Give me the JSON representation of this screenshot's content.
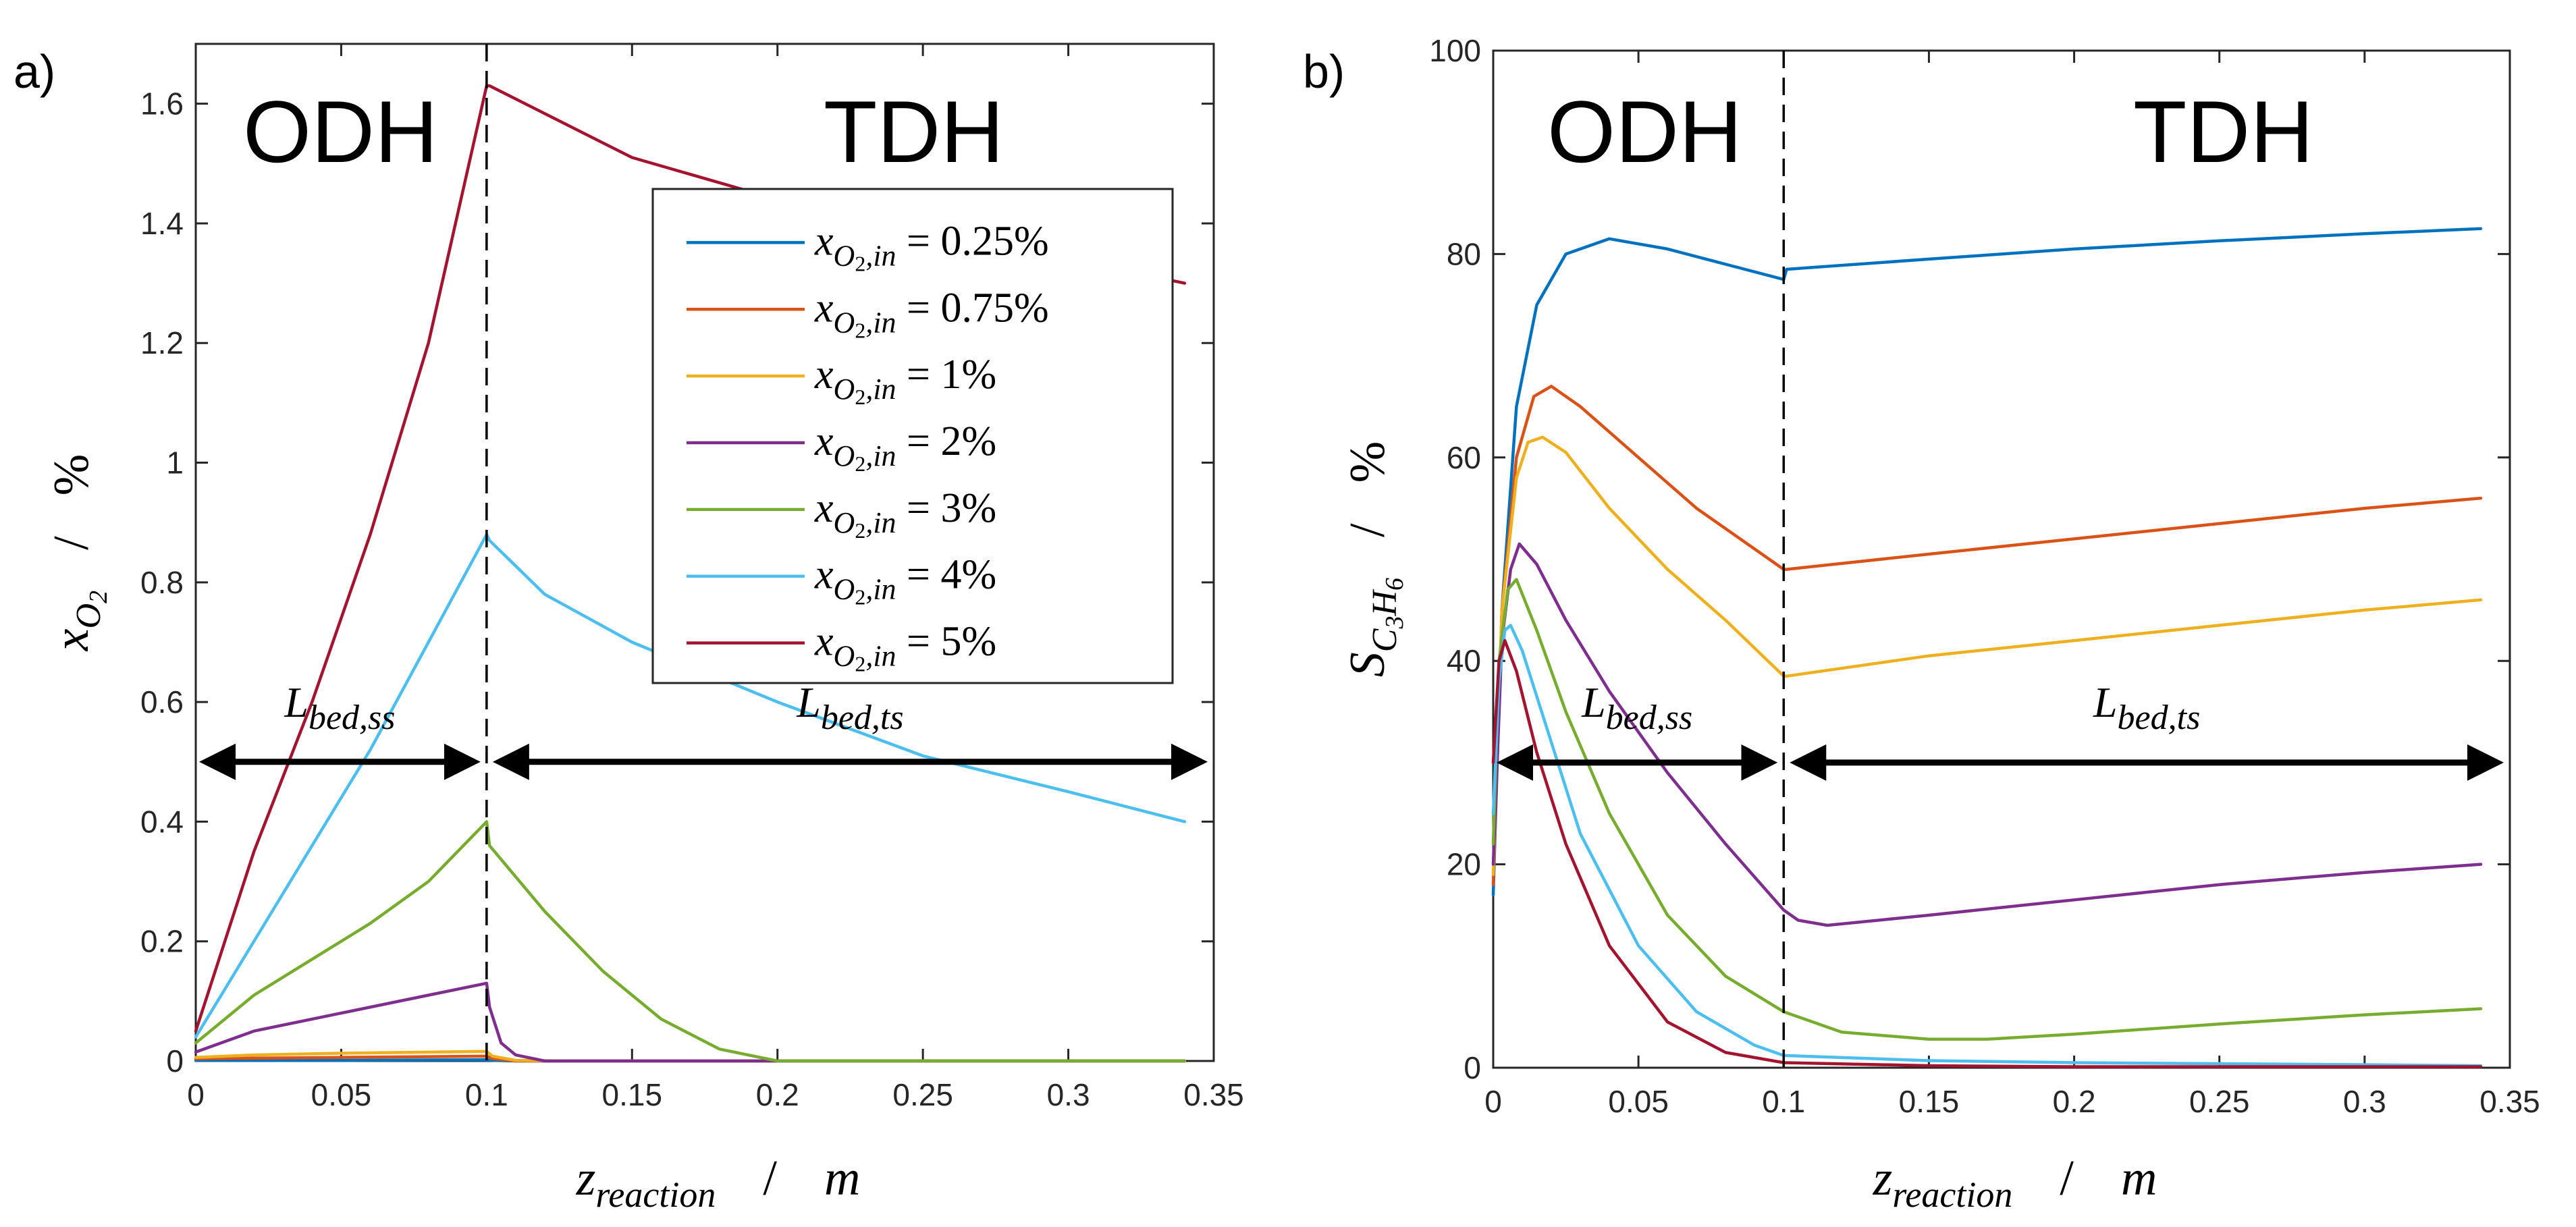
{
  "chart_data": [
    {
      "type": "line",
      "panel_label": "a)",
      "title": "",
      "regions": [
        "ODH",
        "TDH"
      ],
      "xlabel": {
        "main": "z",
        "sub": "reaction",
        "unit": "m",
        "sep": "/"
      },
      "ylabel": {
        "main": "x",
        "sub": "O",
        "subsub": "2",
        "unit": "%",
        "sep": "/"
      },
      "xlim": [
        0,
        0.35
      ],
      "ylim": [
        0,
        1.7
      ],
      "xticks": [
        0,
        0.05,
        0.1,
        0.15,
        0.2,
        0.25,
        0.3,
        0.35
      ],
      "xtick_labels": [
        "0",
        "0.05",
        "0.1",
        "0.15",
        "0.2",
        "0.25",
        "0.3",
        "0.35"
      ],
      "yticks": [
        0,
        0.2,
        0.4,
        0.6,
        0.8,
        1,
        1.2,
        1.4,
        1.6
      ],
      "ytick_labels": [
        "0",
        "0.2",
        "0.4",
        "0.6",
        "0.8",
        "1",
        "1.2",
        "1.4",
        "1.6"
      ],
      "divider_x": 0.1,
      "arrow_y": 0.5,
      "arrows": [
        {
          "label": "L",
          "sub": "bed,ss",
          "from": 0,
          "to": 0.1
        },
        {
          "label": "L",
          "sub": "bed,ts",
          "from": 0.1,
          "to": 0.35
        }
      ],
      "legend": {
        "position": "upper-right",
        "entries": [
          {
            "prefix": "x",
            "sub": "O",
            "subsub": "2",
            "subtail": ",in",
            "value": " = 0.25%"
          },
          {
            "prefix": "x",
            "sub": "O",
            "subsub": "2",
            "subtail": ",in",
            "value": " = 0.75%"
          },
          {
            "prefix": "x",
            "sub": "O",
            "subsub": "2",
            "subtail": ",in",
            "value": " = 1%"
          },
          {
            "prefix": "x",
            "sub": "O",
            "subsub": "2",
            "subtail": ",in",
            "value": " = 2%"
          },
          {
            "prefix": "x",
            "sub": "O",
            "subsub": "2",
            "subtail": ",in",
            "value": " = 3%"
          },
          {
            "prefix": "x",
            "sub": "O",
            "subsub": "2",
            "subtail": ",in",
            "value": " = 4%"
          },
          {
            "prefix": "x",
            "sub": "O",
            "subsub": "2",
            "subtail": ",in",
            "value": " = 5%"
          }
        ]
      },
      "series": [
        {
          "name": "x_O2,in = 0.25%",
          "color": "#0072BD",
          "x": [
            0,
            0.05,
            0.1,
            0.102,
            0.11,
            0.13,
            0.34
          ],
          "y": [
            0.001,
            0.001,
            0.002,
            0.001,
            0.0,
            0.0,
            0.0
          ]
        },
        {
          "name": "x_O2,in = 0.75%",
          "color": "#D95319",
          "x": [
            0,
            0.05,
            0.1,
            0.102,
            0.11,
            0.13,
            0.34
          ],
          "y": [
            0.004,
            0.006,
            0.008,
            0.004,
            0.0,
            0.0,
            0.0
          ]
        },
        {
          "name": "x_O2,in = 1%",
          "color": "#EDB120",
          "x": [
            0,
            0.02,
            0.05,
            0.1,
            0.102,
            0.11,
            0.13,
            0.34
          ],
          "y": [
            0.006,
            0.01,
            0.013,
            0.016,
            0.008,
            0.001,
            0.0,
            0.0
          ]
        },
        {
          "name": "x_O2,in = 2%",
          "color": "#7E2F8E",
          "x": [
            0,
            0.02,
            0.05,
            0.08,
            0.1,
            0.101,
            0.105,
            0.11,
            0.12,
            0.34
          ],
          "y": [
            0.015,
            0.05,
            0.08,
            0.11,
            0.13,
            0.09,
            0.03,
            0.01,
            0.0,
            0.0
          ]
        },
        {
          "name": "x_O2,in = 3%",
          "color": "#77AC30",
          "x": [
            0,
            0.02,
            0.04,
            0.06,
            0.08,
            0.1,
            0.101,
            0.12,
            0.14,
            0.16,
            0.18,
            0.2,
            0.34
          ],
          "y": [
            0.03,
            0.11,
            0.17,
            0.23,
            0.3,
            0.4,
            0.36,
            0.25,
            0.15,
            0.07,
            0.02,
            0.0,
            0.0
          ]
        },
        {
          "name": "x_O2,in = 4%",
          "color": "#4DBEEE",
          "x": [
            0,
            0.02,
            0.04,
            0.06,
            0.08,
            0.1,
            0.101,
            0.12,
            0.15,
            0.2,
            0.25,
            0.3,
            0.34
          ],
          "y": [
            0.04,
            0.2,
            0.36,
            0.52,
            0.7,
            0.88,
            0.87,
            0.78,
            0.7,
            0.6,
            0.51,
            0.45,
            0.4
          ]
        },
        {
          "name": "x_O2,in = 5%",
          "color": "#A2142F",
          "x": [
            0,
            0.01,
            0.02,
            0.04,
            0.06,
            0.08,
            0.1,
            0.101,
            0.15,
            0.2,
            0.25,
            0.3,
            0.34
          ],
          "y": [
            0.05,
            0.2,
            0.35,
            0.6,
            0.88,
            1.2,
            1.63,
            1.63,
            1.51,
            1.44,
            1.39,
            1.34,
            1.3
          ]
        }
      ]
    },
    {
      "type": "line",
      "panel_label": "b)",
      "title": "",
      "regions": [
        "ODH",
        "TDH"
      ],
      "xlabel": {
        "main": "z",
        "sub": "reaction",
        "unit": "m",
        "sep": "/"
      },
      "ylabel": {
        "main": "S",
        "sub": "C",
        "subsub": "3",
        "sub2": "H",
        "subsub2": "6",
        "unit": "%",
        "sep": "/"
      },
      "xlim": [
        0,
        0.35
      ],
      "ylim": [
        0,
        100
      ],
      "xticks": [
        0,
        0.05,
        0.1,
        0.15,
        0.2,
        0.25,
        0.3,
        0.35
      ],
      "xtick_labels": [
        "0",
        "0.05",
        "0.1",
        "0.15",
        "0.2",
        "0.25",
        "0.3",
        "0.35"
      ],
      "yticks": [
        0,
        20,
        40,
        60,
        80,
        100
      ],
      "ytick_labels": [
        "0",
        "20",
        "40",
        "60",
        "80",
        "100"
      ],
      "divider_x": 0.1,
      "arrow_y": 30,
      "arrows": [
        {
          "label": "L",
          "sub": "bed,ss",
          "from": 0,
          "to": 0.1
        },
        {
          "label": "L",
          "sub": "bed,ts",
          "from": 0.1,
          "to": 0.35
        }
      ],
      "series": [
        {
          "name": "x_O2,in = 0.25%",
          "color": "#0072BD",
          "x": [
            0,
            0.003,
            0.008,
            0.015,
            0.025,
            0.04,
            0.06,
            0.08,
            0.1,
            0.101,
            0.15,
            0.2,
            0.25,
            0.3,
            0.34
          ],
          "y": [
            17,
            45,
            65,
            75,
            80,
            81.5,
            80.5,
            79,
            77.5,
            78.5,
            79.5,
            80.5,
            81.3,
            82,
            82.5
          ]
        },
        {
          "name": "x_O2,in = 0.75%",
          "color": "#D95319",
          "x": [
            0,
            0.003,
            0.008,
            0.014,
            0.02,
            0.03,
            0.05,
            0.07,
            0.1,
            0.101,
            0.15,
            0.2,
            0.25,
            0.3,
            0.34
          ],
          "y": [
            18,
            45,
            60,
            66,
            67,
            65,
            60,
            55,
            49,
            49,
            50.5,
            52,
            53.5,
            55,
            56
          ]
        },
        {
          "name": "x_O2,in = 1%",
          "color": "#EDB120",
          "x": [
            0,
            0.003,
            0.008,
            0.012,
            0.017,
            0.025,
            0.04,
            0.06,
            0.08,
            0.1,
            0.101,
            0.15,
            0.2,
            0.25,
            0.3,
            0.34
          ],
          "y": [
            19,
            45,
            58,
            61.5,
            62,
            60.5,
            55,
            49,
            44,
            38.5,
            38.5,
            40.5,
            42,
            43.5,
            45,
            46
          ]
        },
        {
          "name": "x_O2,in = 2%",
          "color": "#7E2F8E",
          "x": [
            0,
            0.003,
            0.006,
            0.009,
            0.015,
            0.025,
            0.04,
            0.06,
            0.08,
            0.1,
            0.105,
            0.115,
            0.15,
            0.2,
            0.25,
            0.3,
            0.34
          ],
          "y": [
            20,
            42,
            49,
            51.5,
            49.5,
            44,
            37,
            29,
            22,
            15.5,
            14.5,
            14,
            15,
            16.5,
            18,
            19.2,
            20
          ]
        },
        {
          "name": "x_O2,in = 3%",
          "color": "#77AC30",
          "x": [
            0,
            0.002,
            0.005,
            0.008,
            0.015,
            0.025,
            0.04,
            0.06,
            0.08,
            0.1,
            0.12,
            0.15,
            0.17,
            0.2,
            0.25,
            0.3,
            0.34
          ],
          "y": [
            22,
            40,
            47,
            48,
            43,
            35,
            25,
            15,
            9,
            5.5,
            3.5,
            2.8,
            2.8,
            3.3,
            4.3,
            5.2,
            5.8
          ]
        },
        {
          "name": "x_O2,in = 4%",
          "color": "#4DBEEE",
          "x": [
            0,
            0.002,
            0.004,
            0.006,
            0.01,
            0.02,
            0.03,
            0.05,
            0.07,
            0.09,
            0.1,
            0.15,
            0.2,
            0.25,
            0.3,
            0.34
          ],
          "y": [
            25,
            38,
            43,
            43.5,
            41,
            32,
            23,
            12,
            5.5,
            2.2,
            1.2,
            0.7,
            0.5,
            0.4,
            0.3,
            0.2
          ]
        },
        {
          "name": "x_O2,in = 5%",
          "color": "#A2142F",
          "x": [
            0,
            0.002,
            0.004,
            0.008,
            0.015,
            0.025,
            0.04,
            0.06,
            0.08,
            0.1,
            0.15,
            0.2,
            0.25,
            0.3,
            0.34
          ],
          "y": [
            30,
            40,
            42,
            39,
            31,
            22,
            12,
            4.5,
            1.5,
            0.5,
            0.2,
            0.1,
            0.1,
            0.1,
            0.1
          ]
        }
      ]
    }
  ]
}
